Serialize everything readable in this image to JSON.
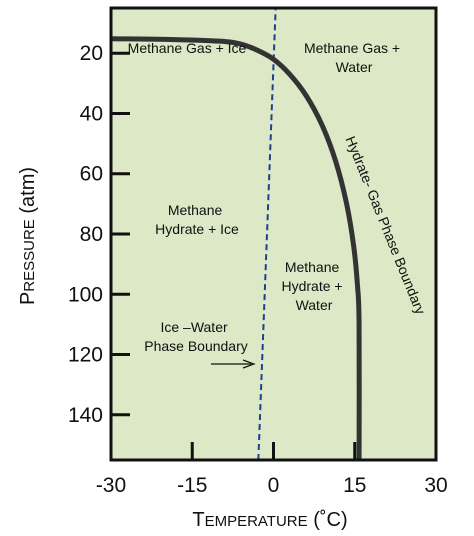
{
  "axes": {
    "xlabel": {
      "text": "Temperature (°C)",
      "lead": "T",
      "rest": "EMPERATURE",
      "tail": " (˚C)"
    },
    "ylabel": {
      "text": "Pressure (atm)",
      "lead": "P",
      "rest": "RESSURE",
      "tail": " (atm)"
    },
    "xlim": [
      -30,
      30
    ],
    "ylim": [
      5,
      155
    ],
    "x_ticks": [
      -30,
      -15,
      0,
      15,
      30
    ],
    "x_tick_labels": [
      "-30",
      "-15",
      "0",
      "15",
      "30"
    ],
    "y_ticks": [
      20,
      40,
      60,
      80,
      100,
      120,
      140
    ],
    "y_tick_labels": [
      "20",
      "40",
      "60",
      "80",
      "100",
      "120",
      "140"
    ],
    "background_color": "#dce8c6",
    "curve_color": "#333333",
    "boundary_line_color": "#1f3f8f"
  },
  "curves": {
    "hydrate_gas_boundary": {
      "label": "Hydrate- Gas Phase Boundary",
      "points": [
        [
          -30,
          15.2
        ],
        [
          -20,
          15.4
        ],
        [
          -10,
          16.0
        ],
        [
          -6,
          17.0
        ],
        [
          -3,
          19.0
        ],
        [
          0,
          22.0
        ],
        [
          3,
          27.0
        ],
        [
          6,
          34.0
        ],
        [
          9,
          44.0
        ],
        [
          11.5,
          56.0
        ],
        [
          13.5,
          70.0
        ],
        [
          14.8,
          84.0
        ],
        [
          15.5,
          97.0
        ],
        [
          15.8,
          110.0
        ],
        [
          15.8,
          155.0
        ]
      ]
    },
    "ice_water_boundary": {
      "label_lines": [
        "Ice –Water",
        "Phase Boundary"
      ],
      "points": [
        [
          -2.8,
          155
        ],
        [
          0.4,
          5
        ]
      ]
    }
  },
  "regions": {
    "gas_ice": {
      "lines": [
        "Methane Gas + Ice"
      ]
    },
    "gas_water": {
      "lines": [
        "Methane Gas +",
        "Water"
      ]
    },
    "hydrate_ice": {
      "lines": [
        "Methane",
        "Hydrate + Ice"
      ]
    },
    "hydrate_water": {
      "lines": [
        "Methane",
        "Hydrate +",
        "Water"
      ]
    }
  }
}
